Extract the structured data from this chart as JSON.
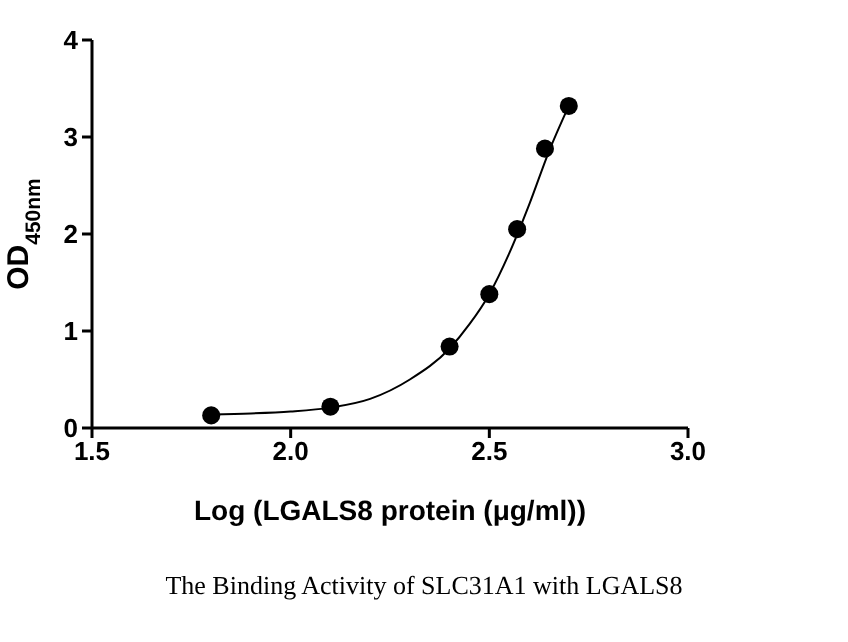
{
  "chart_data": {
    "type": "scatter",
    "xlabel": "Log (LGALS8 protein (μg/ml))",
    "ylabel": "OD$_{450nm}$",
    "xlim": [
      1.5,
      3.0
    ],
    "xticks": [
      {
        "value": 1.5,
        "label": "1.5"
      },
      {
        "value": 2.0,
        "label": "2.0"
      },
      {
        "value": 2.5,
        "label": "2.5"
      },
      {
        "value": 3.0,
        "label": "3.0"
      }
    ],
    "ylim": [
      0,
      4
    ],
    "yticks": [
      0,
      1,
      2,
      3,
      4
    ],
    "marker": "circle",
    "x": [
      1.8,
      2.1,
      2.4,
      2.5,
      2.57,
      2.64,
      2.7
    ],
    "series": [
      {
        "color": "#000000",
        "values": [
          0.13,
          0.22,
          0.84,
          1.38,
          2.05,
          2.88,
          3.32
        ]
      },
      {
        "type": "line",
        "color": "#000000",
        "marker": "none",
        "line_style": "solid",
        "x": [
          1.8,
          1.9,
          2.0,
          2.1,
          2.2,
          2.3,
          2.4,
          2.45,
          2.5,
          2.55,
          2.6,
          2.65,
          2.7
        ],
        "values": [
          0.14,
          0.15,
          0.17,
          0.21,
          0.3,
          0.5,
          0.82,
          1.07,
          1.38,
          1.8,
          2.3,
          2.85,
          3.32
        ]
      }
    ],
    "annotations": [
      "The Binding Activity of SLC31A1 with LGALS8"
    ]
  }
}
